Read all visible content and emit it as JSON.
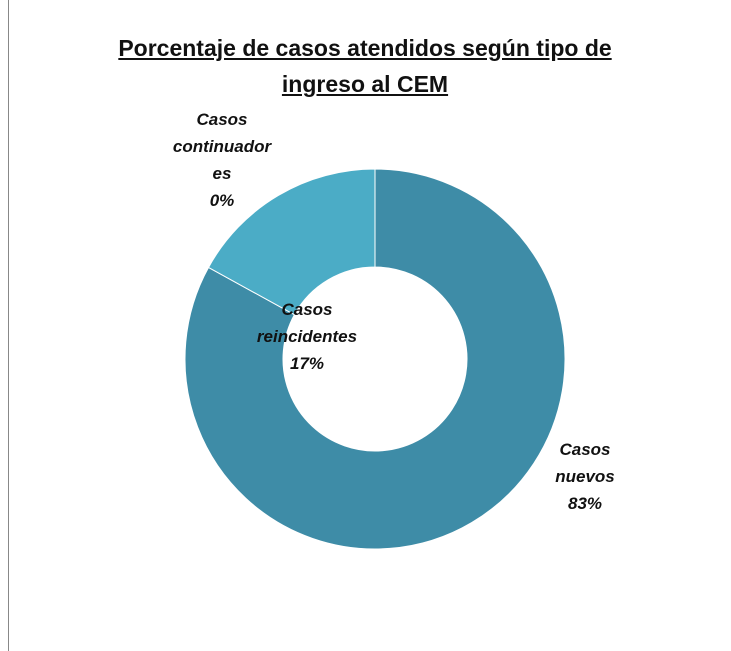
{
  "chart_data": {
    "type": "donut",
    "title": "Porcentaje de casos atendidos según tipo de ingreso al CEM",
    "categories": [
      "Casos nuevos",
      "Casos reincidentes",
      "Casos continuadores"
    ],
    "values": [
      83,
      17,
      0
    ],
    "value_labels": [
      "83%",
      "17%",
      "0%"
    ],
    "colors": [
      "#3e8ca7",
      "#4bacc6",
      "#5fb8d0"
    ]
  }
}
